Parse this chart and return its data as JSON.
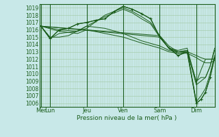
{
  "xlabel": "Pression niveau de la mer( hPa )",
  "background_color": "#c8e8e8",
  "grid_color": "#a0c8a0",
  "line_color": "#1a5c1a",
  "ylim": [
    1005.5,
    1019.5
  ],
  "yticks": [
    1006,
    1007,
    1008,
    1009,
    1010,
    1011,
    1012,
    1013,
    1014,
    1015,
    1016,
    1017,
    1018,
    1019
  ],
  "day_labels": [
    "Mer",
    "Lun",
    "Jeu",
    "Ven",
    "Sam",
    "Dim"
  ],
  "day_positions": [
    0,
    12,
    60,
    108,
    156,
    204
  ],
  "xlim": [
    -2,
    228
  ],
  "lines": [
    [
      0,
      1016.5,
      12,
      1014.8,
      24,
      1016.0,
      36,
      1016.2,
      48,
      1016.8,
      60,
      1017.0,
      72,
      1017.3,
      84,
      1017.5,
      96,
      1018.5,
      108,
      1019.2,
      120,
      1018.8,
      132,
      1018.2,
      144,
      1017.5,
      156,
      1015.0,
      168,
      1013.5,
      180,
      1012.5,
      192,
      1013.0,
      204,
      1006.0,
      210,
      1006.5,
      216,
      1007.5,
      222,
      1009.5,
      228,
      1012.2
    ],
    [
      0,
      1016.5,
      12,
      1014.8,
      24,
      1015.5,
      48,
      1015.8,
      60,
      1016.2,
      84,
      1018.0,
      108,
      1019.0,
      120,
      1018.5,
      132,
      1017.8,
      144,
      1017.0,
      156,
      1015.2,
      168,
      1013.8,
      180,
      1013.0,
      192,
      1013.2,
      204,
      1006.2,
      210,
      1007.0,
      216,
      1008.0,
      222,
      1010.0,
      228,
      1012.5
    ],
    [
      0,
      1016.5,
      12,
      1015.0,
      24,
      1015.0,
      36,
      1015.2,
      60,
      1016.5,
      84,
      1017.8,
      108,
      1018.8,
      120,
      1018.3,
      132,
      1017.5,
      144,
      1016.8,
      156,
      1015.0,
      168,
      1013.5,
      180,
      1012.8,
      192,
      1013.0,
      204,
      1008.5,
      210,
      1009.0,
      216,
      1009.5,
      222,
      1011.0,
      228,
      1013.5
    ],
    [
      0,
      1016.5,
      156,
      1015.2,
      168,
      1013.5,
      180,
      1013.0,
      192,
      1013.2,
      204,
      1009.0,
      210,
      1009.5,
      216,
      1009.5,
      222,
      1011.0,
      228,
      1013.2
    ],
    [
      0,
      1016.5,
      156,
      1015.0,
      168,
      1013.5,
      180,
      1013.2,
      192,
      1013.5,
      204,
      1008.8,
      210,
      1010.5,
      216,
      1012.0,
      222,
      1012.0,
      228,
      1012.0
    ],
    [
      0,
      1016.5,
      24,
      1016.0,
      48,
      1015.8,
      60,
      1016.5,
      84,
      1016.2,
      108,
      1015.5,
      132,
      1014.5,
      156,
      1013.8,
      168,
      1013.2,
      180,
      1013.0,
      192,
      1013.0,
      204,
      1012.5,
      210,
      1012.2,
      216,
      1012.0,
      222,
      1012.0,
      228,
      1012.0
    ],
    [
      0,
      1016.5,
      24,
      1015.8,
      48,
      1015.5,
      60,
      1016.0,
      108,
      1015.0,
      132,
      1014.2,
      156,
      1013.5,
      168,
      1013.0,
      180,
      1012.8,
      192,
      1012.8,
      204,
      1012.2,
      210,
      1011.8,
      216,
      1011.5,
      222,
      1011.5,
      228,
      1011.8
    ]
  ],
  "marker_lines": [
    [
      0,
      1016.5,
      12,
      1014.8,
      24,
      1016.0,
      36,
      1016.2,
      48,
      1016.8,
      60,
      1017.0,
      72,
      1017.3,
      84,
      1017.5,
      96,
      1018.5,
      108,
      1019.2,
      120,
      1018.8,
      132,
      1018.2,
      144,
      1017.5,
      156,
      1015.0,
      168,
      1013.5,
      180,
      1012.5,
      192,
      1013.0,
      204,
      1006.0,
      210,
      1006.5,
      216,
      1007.5,
      222,
      1009.5,
      228,
      1012.2
    ]
  ]
}
